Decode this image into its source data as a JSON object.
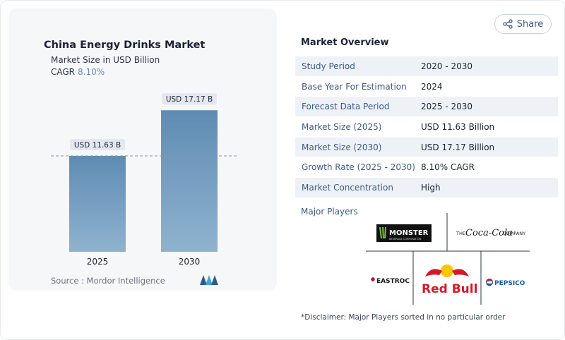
{
  "chart_data": {
    "type": "bar",
    "title": "China Energy Drinks Market",
    "subtitle": "Market Size in USD Billion",
    "cagr_label": "CAGR",
    "cagr_value": "8.10%",
    "categories": [
      "2025",
      "2030"
    ],
    "values": [
      11.63,
      17.17
    ],
    "value_labels": [
      "USD 11.63 B",
      "USD 17.17 B"
    ],
    "ylim": [
      0,
      19.5
    ],
    "grid": false,
    "bar_color": "#6b93b8",
    "reference_line": "dashed line at first bar value"
  },
  "source": "Source :  Mordor Intelligence",
  "share": {
    "label": "Share",
    "icon": "share-icon"
  },
  "overview": {
    "title": "Market Overview",
    "rows": [
      {
        "label": "Study Period",
        "value": "2020 - 2030"
      },
      {
        "label": "Base Year For Estimation",
        "value": "2024"
      },
      {
        "label": "Forecast Data Period",
        "value": "2025 - 2030"
      },
      {
        "label": "Market Size (2025)",
        "value": "USD 11.63 Billion"
      },
      {
        "label": "Market Size (2030)",
        "value": "USD 17.17 Billion"
      },
      {
        "label": "Growth Rate (2025 - 2030)",
        "value": "8.10% CAGR"
      },
      {
        "label": "Market Concentration",
        "value": "High"
      }
    ]
  },
  "players": {
    "title": "Major Players",
    "logos": {
      "monster": "MONSTER",
      "monster_sub": "BEVERAGE CORPORATION",
      "coca_prefix": "THE",
      "coca_name": "Coca-Cola",
      "coca_suffix": "COMPANY",
      "eastroc": "EASTROC",
      "redbull": "Red Bull",
      "pepsico": "PEPSICO"
    }
  },
  "disclaimer": "*Disclaimer: Major Players sorted in no particular order"
}
